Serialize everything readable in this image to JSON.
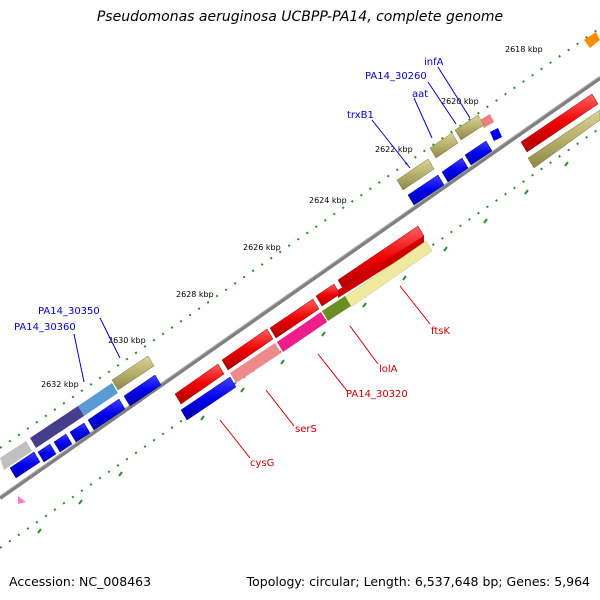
{
  "title": "Pseudomonas aeruginosa UCBPP-PA14, complete genome",
  "footer": {
    "accession": "Accession: NC_008463",
    "summary": "Topology: circular; Length: 6,537,648 bp; Genes: 5,964"
  },
  "colors": {
    "backbone": "#808080",
    "tick": "#2e8b2e",
    "label_forward": "#0000cc",
    "label_reverse": "#cc0000",
    "leader_forward": "#0000cc",
    "leader_reverse": "#cc0000"
  },
  "scale_ticks": [
    "2618 kbp",
    "2620 kbp",
    "2622 kbp",
    "2624 kbp",
    "2626 kbp",
    "2628 kbp",
    "2630 kbp",
    "2632 kbp"
  ],
  "gene_labels_forward": [
    "infA",
    "PA14_30260",
    "aat",
    "trxB1",
    "PA14_30350",
    "PA14_30360"
  ],
  "gene_labels_reverse": [
    "ftsK",
    "lolA",
    "PA14_30320",
    "serS",
    "cysG"
  ],
  "legend_note": ""
}
